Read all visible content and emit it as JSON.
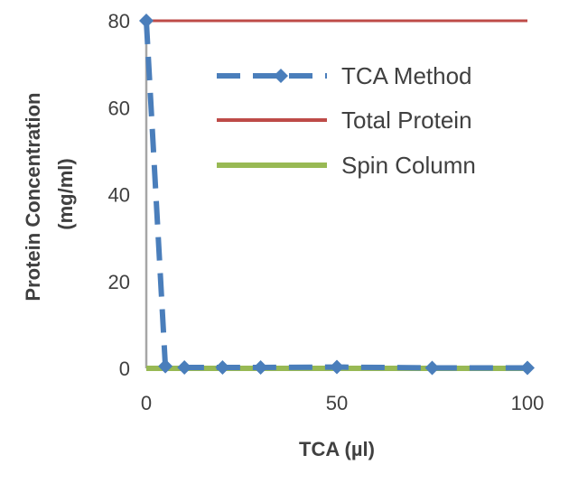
{
  "chart_data": {
    "type": "line",
    "xlabel": "TCA (µl)",
    "ylabel_lines": [
      "Protein Concentration",
      "(mg/ml)"
    ],
    "xlim": [
      0,
      100
    ],
    "ylim": [
      0,
      80
    ],
    "xticks": [
      0,
      50,
      100
    ],
    "yticks": [
      0,
      20,
      40,
      60,
      80
    ],
    "grid": false,
    "legend_position": "top-right",
    "series": [
      {
        "name": "TCA Method",
        "color": "#4a7ebb",
        "style": "dashed",
        "marker": "diamond",
        "x": [
          0,
          5,
          10,
          20,
          30,
          50,
          75,
          100
        ],
        "y": [
          80,
          0.5,
          0.2,
          0.2,
          0.2,
          0.3,
          0.1,
          0.1
        ]
      },
      {
        "name": "Total Protein",
        "color": "#be4b48",
        "style": "solid",
        "marker": "none",
        "x": [
          0,
          100
        ],
        "y": [
          80,
          80
        ]
      },
      {
        "name": "Spin Column",
        "color": "#98b954",
        "style": "solid",
        "marker": "none",
        "x": [
          0,
          5,
          10,
          20,
          30,
          50,
          75,
          100
        ],
        "y": [
          0,
          0,
          0,
          0,
          0,
          0,
          0,
          0
        ]
      }
    ]
  }
}
